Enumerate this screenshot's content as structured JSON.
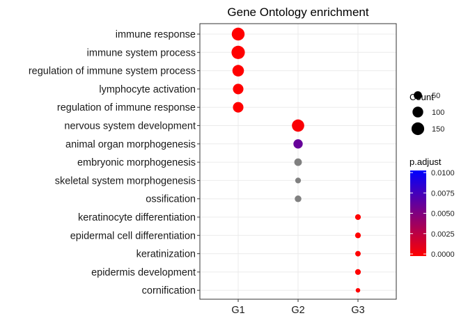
{
  "chart_data": {
    "type": "scatter",
    "title": "Gene Ontology enrichment",
    "xlabel": "",
    "ylabel": "",
    "categories_x": [
      "G1",
      "G2",
      "G3"
    ],
    "terms": [
      "immune response",
      "immune system process",
      "regulation of immune system process",
      "lymphocyte activation",
      "regulation of immune response",
      "nervous system development",
      "animal organ morphogenesis",
      "embryonic morphogenesis",
      "skeletal system morphogenesis",
      "ossification",
      "keratinocyte differentiation",
      "epidermal cell differentiation",
      "keratinization",
      "epidermis development",
      "cornification"
    ],
    "points": [
      {
        "term": "immune response",
        "cluster": "G1",
        "count": 155,
        "p_adjust": 0.0
      },
      {
        "term": "immune system process",
        "cluster": "G1",
        "count": 170,
        "p_adjust": 0.0
      },
      {
        "term": "regulation of immune system process",
        "cluster": "G1",
        "count": 120,
        "p_adjust": 0.0
      },
      {
        "term": "lymphocyte activation",
        "cluster": "G1",
        "count": 95,
        "p_adjust": 0.0
      },
      {
        "term": "regulation of immune response",
        "cluster": "G1",
        "count": 95,
        "p_adjust": 0.0
      },
      {
        "term": "nervous system development",
        "cluster": "G2",
        "count": 140,
        "p_adjust": 0.0002
      },
      {
        "term": "animal organ morphogenesis",
        "cluster": "G2",
        "count": 70,
        "p_adjust": 0.006
      },
      {
        "term": "embryonic morphogenesis",
        "cluster": "G2",
        "count": 40,
        "p_adjust": null
      },
      {
        "term": "skeletal system morphogenesis",
        "cluster": "G2",
        "count": 18,
        "p_adjust": null
      },
      {
        "term": "ossification",
        "cluster": "G2",
        "count": 28,
        "p_adjust": null
      },
      {
        "term": "keratinocyte differentiation",
        "cluster": "G3",
        "count": 18,
        "p_adjust": 0.0
      },
      {
        "term": "epidermal cell differentiation",
        "cluster": "G3",
        "count": 18,
        "p_adjust": 0.0
      },
      {
        "term": "keratinization",
        "cluster": "G3",
        "count": 16,
        "p_adjust": 0.0
      },
      {
        "term": "epidermis development",
        "cluster": "G3",
        "count": 18,
        "p_adjust": 0.0
      },
      {
        "term": "cornification",
        "cluster": "G3",
        "count": 8,
        "p_adjust": 0.0
      }
    ],
    "na_color": "#808080",
    "size_legend": {
      "title": "Count",
      "values": [
        50,
        100,
        150
      ],
      "labels": [
        "50",
        "100",
        "150"
      ]
    },
    "color_legend": {
      "title": "p.adjust",
      "range": [
        0,
        0.01
      ],
      "low_color": "#FF0000",
      "high_color": "#0000FF",
      "ticks": [
        0.0,
        0.0025,
        0.005,
        0.0075,
        0.01
      ],
      "labels": [
        "0.0000",
        "0.0025",
        "0.0050",
        "0.0075",
        "0.0100"
      ]
    },
    "grid": true,
    "legend_position": "right"
  }
}
